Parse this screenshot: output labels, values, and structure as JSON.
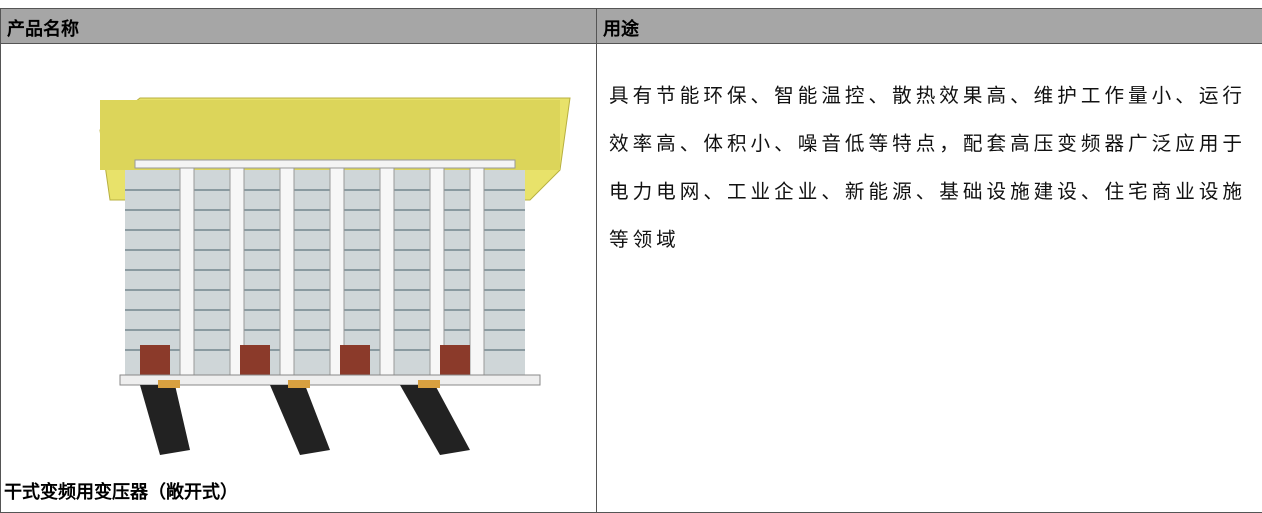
{
  "table": {
    "header": [
      "产品名称",
      "用途"
    ],
    "rows": [
      [
        "干式变频用变压器（敞开式）",
        "具有节能环保、智能温控、散热效果高、维护工作量小、运行效率高、体积小、噪音低等特点，配套高压变频器广泛应用于电力电网、工业企业、新能源、基础设施建设、住宅商业设施等领域"
      ]
    ]
  }
}
